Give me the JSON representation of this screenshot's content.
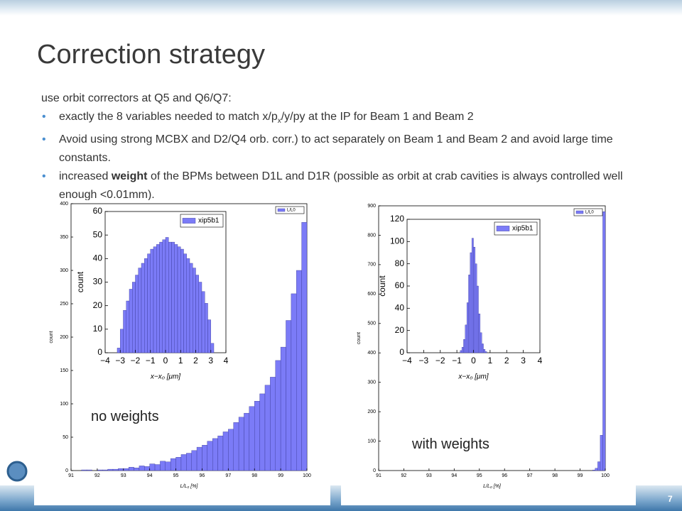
{
  "title": "Correction strategy",
  "intro": "use orbit correctors at Q5 and Q6/Q7:",
  "bullets": [
    [
      "exactly the 8 variables needed to match x/p",
      "x",
      "/y/py at the IP for Beam 1 and Beam 2"
    ],
    [
      "Avoid using strong MCBX and D2/Q4 orb. corr.)  to act separately on Beam 1 and Beam 2 and avoid large time constants."
    ],
    [
      "increased ",
      "weight",
      " of the BPMs between D1L and D1R (possible as orbit at crab cavities is always controlled well enough <0.01mm)."
    ]
  ],
  "captions": [
    "no weights",
    "with weights"
  ],
  "slide_number": 7,
  "chart_data": [
    {
      "type": "histogram",
      "name": "L/L0",
      "color": "#7b7bf7",
      "xlabel": "L/L₀ [%]",
      "ylabel": "count",
      "bins": [
        91.4,
        91.6,
        91.8,
        92.0,
        92.2,
        92.4,
        92.6,
        92.8,
        93.0,
        93.2,
        93.4,
        93.6,
        93.8,
        94.0,
        94.2,
        94.4,
        94.6,
        94.8,
        95.0,
        95.2,
        95.4,
        95.6,
        95.8,
        96.0,
        96.2,
        96.4,
        96.6,
        96.8,
        97.0,
        97.2,
        97.4,
        97.6,
        97.8,
        98.0,
        98.2,
        98.4,
        98.6,
        98.8,
        99.0,
        99.2,
        99.4,
        99.6,
        99.8,
        100.0
      ],
      "values": [
        1,
        1,
        0,
        1,
        1,
        2,
        2,
        3,
        3,
        5,
        4,
        7,
        6,
        10,
        9,
        14,
        13,
        18,
        20,
        24,
        26,
        30,
        35,
        38,
        44,
        48,
        52,
        58,
        62,
        72,
        80,
        86,
        96,
        104,
        115,
        128,
        140,
        165,
        185,
        225,
        265,
        300,
        372
      ],
      "xlim": [
        91,
        100
      ],
      "xticks": [
        91,
        92,
        93,
        94,
        95,
        96,
        97,
        98,
        99,
        100
      ],
      "ylim": [
        0,
        400
      ],
      "yticks": [
        0,
        50,
        100,
        150,
        200,
        250,
        300,
        350,
        400
      ]
    },
    {
      "type": "histogram",
      "name": "xip5b1",
      "color": "#7b7bf7",
      "xlabel": "x−x₀ [μm]",
      "ylabel": "count",
      "bins": [
        -3.2,
        -3.0,
        -2.8,
        -2.6,
        -2.4,
        -2.2,
        -2.0,
        -1.8,
        -1.6,
        -1.4,
        -1.2,
        -1.0,
        -0.8,
        -0.6,
        -0.4,
        -0.2,
        0,
        0.2,
        0.4,
        0.6,
        0.8,
        1.0,
        1.2,
        1.4,
        1.6,
        1.8,
        2.0,
        2.2,
        2.4,
        2.6,
        2.8,
        3.0,
        3.2
      ],
      "values": [
        2,
        10,
        18,
        22,
        27,
        30,
        33,
        36,
        38,
        40,
        42,
        44,
        45,
        46,
        47,
        48,
        49,
        47,
        47,
        46,
        45,
        44,
        42,
        40,
        38,
        36,
        33,
        30,
        26,
        21,
        14,
        4
      ],
      "xlim": [
        -4,
        4
      ],
      "xticks": [
        {
          "value": -4,
          "label": "−4"
        },
        {
          "value": -3,
          "label": "−3"
        },
        {
          "value": -2,
          "label": "−2"
        },
        {
          "value": -1,
          "label": "−1"
        },
        0,
        1,
        2,
        3,
        4
      ],
      "ylim": [
        0,
        60
      ],
      "yticks": [
        0,
        10,
        20,
        30,
        40,
        50,
        60
      ]
    },
    {
      "type": "histogram",
      "name": "L/L0",
      "color": "#7b7bf7",
      "xlabel": "L/L₀ [%]",
      "ylabel": "count",
      "bins": [
        99.5,
        99.6,
        99.7,
        99.8,
        99.9,
        100.0
      ],
      "values": [
        2,
        8,
        30,
        120,
        880
      ],
      "xlim": [
        91,
        100
      ],
      "xticks": [
        91,
        92,
        93,
        94,
        95,
        96,
        97,
        98,
        99,
        100
      ],
      "ylim": [
        0,
        900
      ],
      "yticks": [
        0,
        100,
        200,
        300,
        400,
        500,
        600,
        700,
        800,
        900
      ]
    },
    {
      "type": "histogram",
      "name": "xip5b1",
      "color": "#7b7bf7",
      "xlabel": "x−x₀ [μm]",
      "ylabel": "count",
      "bins": [
        -0.8,
        -0.7,
        -0.6,
        -0.5,
        -0.4,
        -0.3,
        -0.2,
        -0.1,
        0,
        0.1,
        0.2,
        0.3,
        0.4,
        0.5,
        0.6,
        0.7,
        0.8
      ],
      "values": [
        2,
        5,
        12,
        25,
        45,
        70,
        90,
        103,
        95,
        80,
        60,
        35,
        18,
        8,
        3,
        1
      ],
      "xlim": [
        -4,
        4
      ],
      "xticks": [
        {
          "value": -4,
          "label": "−4"
        },
        {
          "value": -3,
          "label": "−3"
        },
        {
          "value": -2,
          "label": "−2"
        },
        {
          "value": -1,
          "label": "−1"
        },
        0,
        1,
        2,
        3,
        4
      ],
      "ylim": [
        0,
        120
      ],
      "yticks": [
        0,
        20,
        40,
        60,
        80,
        100,
        120
      ]
    }
  ]
}
